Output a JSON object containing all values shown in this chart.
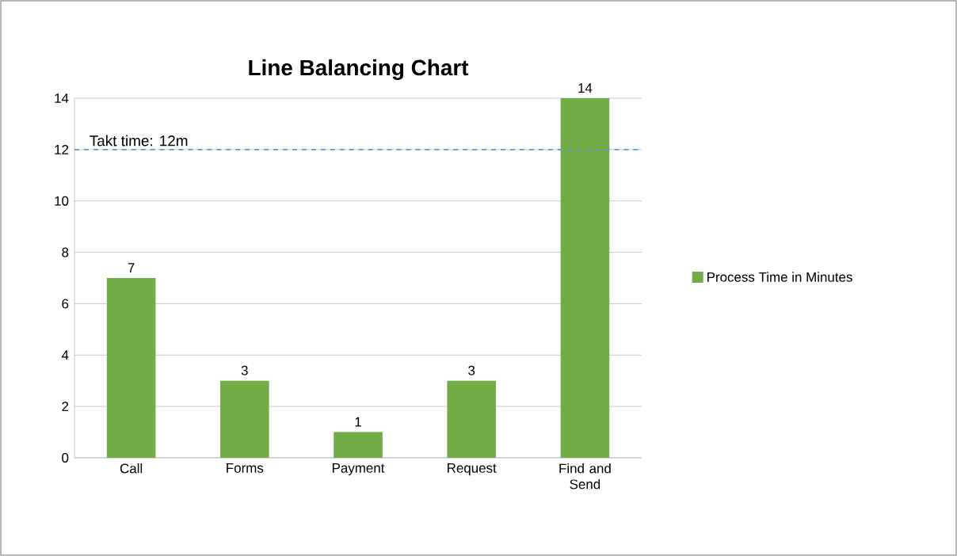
{
  "chart_data": {
    "type": "bar",
    "title": "Line Balancing Chart",
    "categories": [
      "Call",
      "Forms",
      "Payment",
      "Request",
      "Find and Send"
    ],
    "series": [
      {
        "name": "Process Time in Minutes",
        "color": "#70ad47",
        "values": [
          7,
          3,
          1,
          3,
          14
        ]
      }
    ],
    "ylim": [
      0,
      14
    ],
    "yticks": [
      0,
      2,
      4,
      6,
      8,
      10,
      12,
      14
    ],
    "grid": "y",
    "legend": "right",
    "data_labels": true,
    "ref_lines": [
      {
        "axis": "y",
        "value": 12,
        "label": "Takt time: 12m",
        "color": "#5b9bd5",
        "line_style": "dashed"
      }
    ]
  }
}
